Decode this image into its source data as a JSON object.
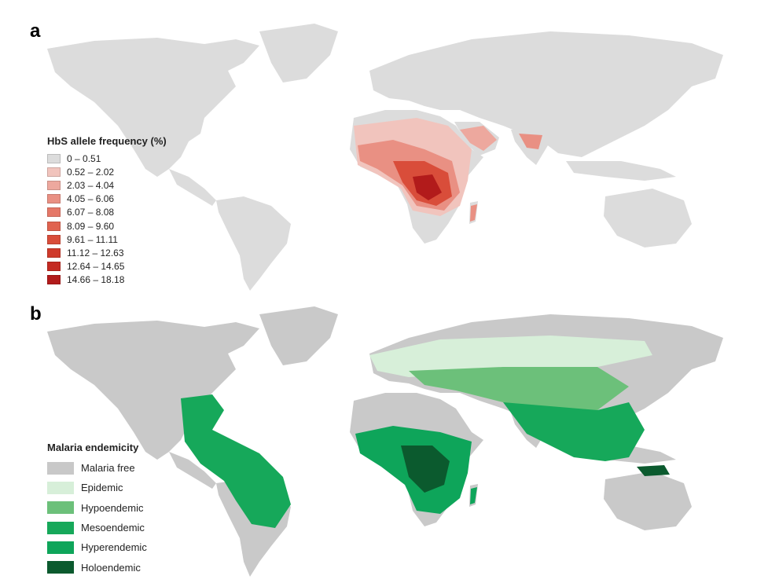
{
  "panel_a": {
    "letter": "a",
    "legend_title": "HbS allele frequency (%)",
    "legend": [
      {
        "label": "0 – 0.51",
        "color": "#dcdcdc"
      },
      {
        "label": "0.52 – 2.02",
        "color": "#f1c4bd"
      },
      {
        "label": "2.03 – 4.04",
        "color": "#eda89e"
      },
      {
        "label": "4.05 – 6.06",
        "color": "#e99083"
      },
      {
        "label": "6.07 – 8.08",
        "color": "#e57868"
      },
      {
        "label": "8.09 – 9.60",
        "color": "#e0634f"
      },
      {
        "label": "9.61 – 11.11",
        "color": "#d94d3a"
      },
      {
        "label": "11.12 – 12.63",
        "color": "#cf3a2b"
      },
      {
        "label": "12.64 – 14.65",
        "color": "#c42a22"
      },
      {
        "label": "14.66 – 18.18",
        "color": "#b21b1b"
      }
    ]
  },
  "panel_b": {
    "letter": "b",
    "legend_title": "Malaria endemicity",
    "legend": [
      {
        "label": "Malaria free",
        "color": "#c8c8c8"
      },
      {
        "label": "Epidemic",
        "color": "#d7efd9"
      },
      {
        "label": "Hypoendemic",
        "color": "#6cc07a"
      },
      {
        "label": "Mesoendemic",
        "color": "#16a85a"
      },
      {
        "label": "Hyperendemic",
        "color": "#0ea55a"
      },
      {
        "label": "Holoendemic",
        "color": "#0b5a2e"
      }
    ]
  },
  "colors": {
    "land": "#dcdcdc",
    "land_b": "#c9c9c9"
  }
}
